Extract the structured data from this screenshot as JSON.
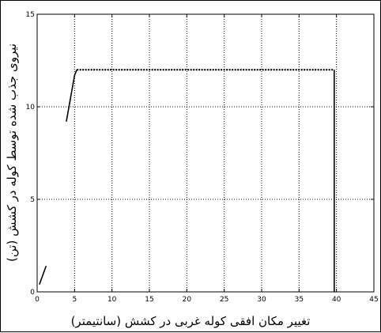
{
  "chart_data": {
    "type": "line",
    "xlabel": "تغییر مکان افقی کوله غربی در کشش (سانتیمتر)",
    "ylabel": "نیروی جذب شده توسط کوله در کشش (تن)",
    "xlim": [
      0,
      45
    ],
    "ylim": [
      0,
      15
    ],
    "xticks": [
      0,
      5,
      10,
      15,
      20,
      25,
      30,
      35,
      40,
      45
    ],
    "yticks": [
      0,
      5,
      10,
      15
    ],
    "grid": true,
    "series": [
      {
        "style": "solid",
        "x": [
          0.3,
          1.2
        ],
        "y": [
          0.4,
          1.4
        ]
      },
      {
        "style": "solid",
        "x": [
          3.9,
          5.0,
          5.3
        ],
        "y": [
          9.2,
          11.7,
          12.0
        ]
      },
      {
        "style": "dotted",
        "x": [
          5.3,
          39.7
        ],
        "y": [
          12.0,
          12.0
        ]
      },
      {
        "style": "solid",
        "x": [
          39.7,
          39.7
        ],
        "y": [
          12.0,
          0.0
        ]
      }
    ]
  }
}
